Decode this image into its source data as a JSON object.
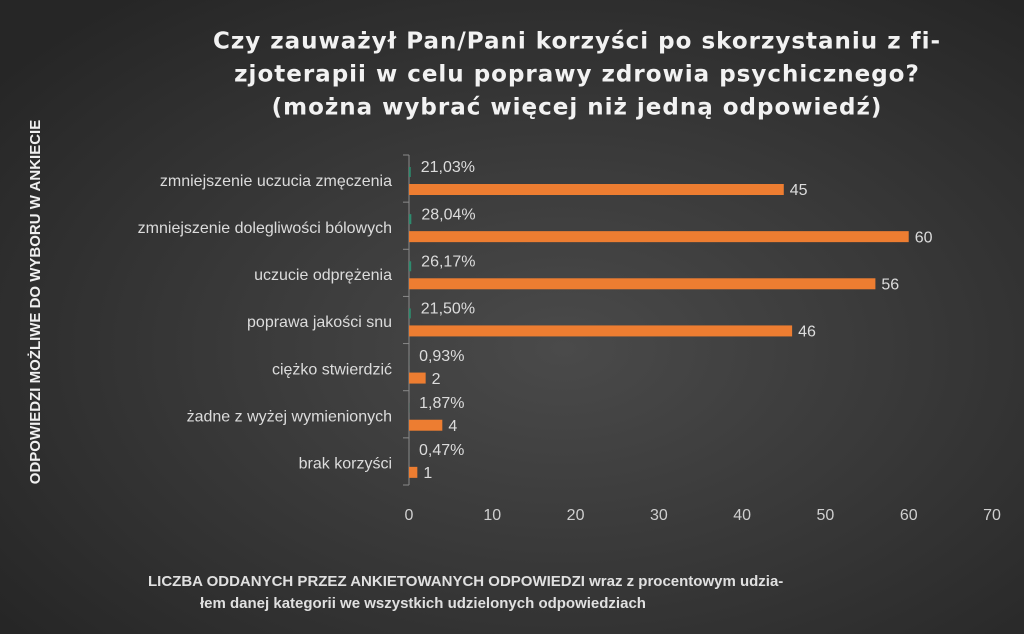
{
  "chart_data": {
    "type": "bar",
    "orientation": "horizontal",
    "title": [
      "Czy zauważył Pan/Pani korzyści po skorzystaniu z fi-",
      "zjoterapii w celu poprawy zdrowia psychicznego?",
      "(można wybrać więcej niż jedną odpowiedź)"
    ],
    "ylabel": "ODPOWIEDZI MOŻLIWE DO WYBORU W ANKIECIE",
    "xlabel": [
      "LICZBA ODDANYCH PRZEZ ANKIETOWANYCH ODPOWIEDZI wraz z procentowym udzia-",
      "łem danej kategorii we wszystkich udzielonych odpowiedziach"
    ],
    "categories": [
      "zmniejszenie uczucia zmęczenia",
      "zmniejszenie dolegliwości bólowych",
      "uczucie odprężenia",
      "poprawa jakości snu",
      "ciężko stwierdzić",
      "żadne z wyżej wymienionych",
      "brak korzyści"
    ],
    "series": [
      {
        "color": "#2e8b6e",
        "values": [
          0.2103,
          0.2804,
          0.2617,
          0.215,
          0.0093,
          0.0187,
          0.0047
        ],
        "value_labels": [
          "21,03%",
          "28,04%",
          "26,17%",
          "21,50%",
          "0,93%",
          "1,87%",
          "0,47%"
        ]
      },
      {
        "color": "#ed7d31",
        "values": [
          45,
          60,
          56,
          46,
          2,
          4,
          1
        ]
      }
    ],
    "xlim": [
      0,
      70
    ],
    "xticks": [
      0,
      10,
      20,
      30,
      40,
      50,
      60,
      70
    ],
    "grid": false
  }
}
